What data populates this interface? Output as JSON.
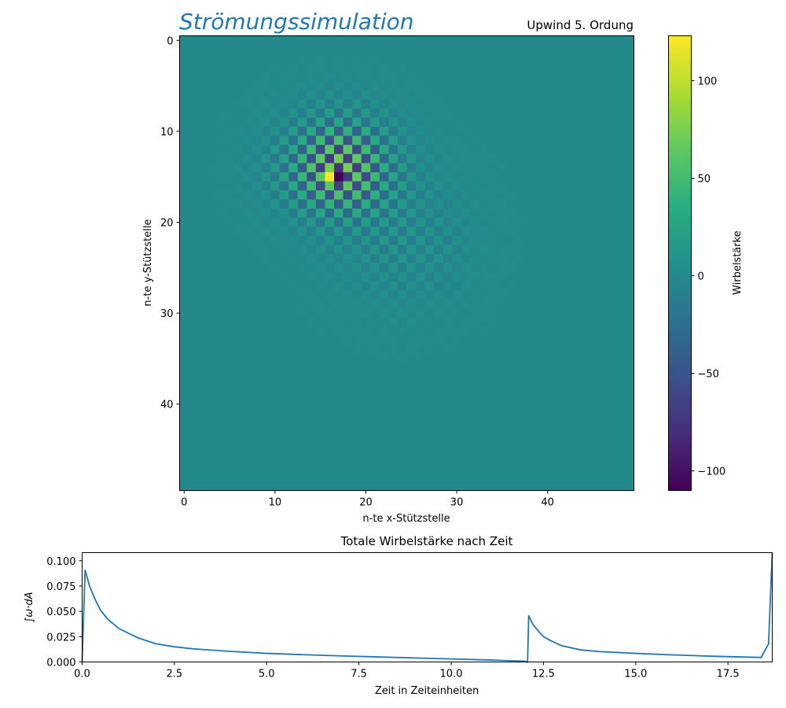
{
  "chart_data": [
    {
      "type": "heatmap",
      "title": "Strömungssimulation",
      "subtitle": "Upwind 5. Ordung",
      "xlabel": "n-te x-Stützstelle",
      "ylabel": "n-te y-Stützstelle",
      "grid_size": [
        50,
        50
      ],
      "x_ticks": [
        0,
        10,
        20,
        30,
        40
      ],
      "y_ticks": [
        0,
        10,
        20,
        30,
        40
      ],
      "y_axis_inverted": true,
      "grid": false,
      "background_value": 0,
      "peak": {
        "x": 16,
        "y": 15,
        "value": 123
      },
      "min_cell": {
        "x": 17,
        "y": 15,
        "value": -110
      },
      "checkerboard_center": [
        17,
        14
      ],
      "colormap": "viridis",
      "colorbar": {
        "label": "Wirbelstärke",
        "range": [
          -110,
          123
        ],
        "ticks": [
          -100,
          -50,
          0,
          50,
          100
        ],
        "tick_labels": [
          "−100",
          "−50",
          "0",
          "50",
          "100"
        ]
      }
    },
    {
      "type": "line",
      "title": "Totale Wirbelstärke nach Zeit",
      "xlabel": "Zeit in Zeiteinheiten",
      "ylabel": "∫ω·dA",
      "xlim": [
        0,
        18.7
      ],
      "ylim": [
        0,
        0.108
      ],
      "x_ticks": [
        "0.0",
        "2.5",
        "5.0",
        "7.5",
        "10.0",
        "12.5",
        "15.0",
        "17.5"
      ],
      "y_ticks": [
        "0.000",
        "0.025",
        "0.050",
        "0.075",
        "0.100"
      ],
      "color": "#1f77b4",
      "series": [
        {
          "x": [
            0.0,
            0.08,
            0.2,
            0.35,
            0.5,
            0.7,
            1.0,
            1.5,
            2.0,
            2.5,
            3.0,
            4.0,
            5.0,
            6.0,
            7.0,
            8.0,
            9.0,
            10.0,
            11.0,
            12.0,
            12.07,
            12.1,
            12.2,
            12.35,
            12.5,
            12.7,
            13.0,
            13.5,
            14.0,
            15.0,
            16.0,
            17.0,
            18.0,
            18.4,
            18.6,
            18.7
          ],
          "y": [
            0.0,
            0.091,
            0.075,
            0.062,
            0.051,
            0.042,
            0.033,
            0.024,
            0.018,
            0.015,
            0.013,
            0.0105,
            0.0085,
            0.0072,
            0.006,
            0.005,
            0.004,
            0.003,
            0.002,
            0.0008,
            0.0,
            0.046,
            0.038,
            0.031,
            0.025,
            0.021,
            0.016,
            0.012,
            0.0103,
            0.0085,
            0.007,
            0.0058,
            0.0048,
            0.0045,
            0.018,
            0.108
          ]
        }
      ]
    }
  ]
}
